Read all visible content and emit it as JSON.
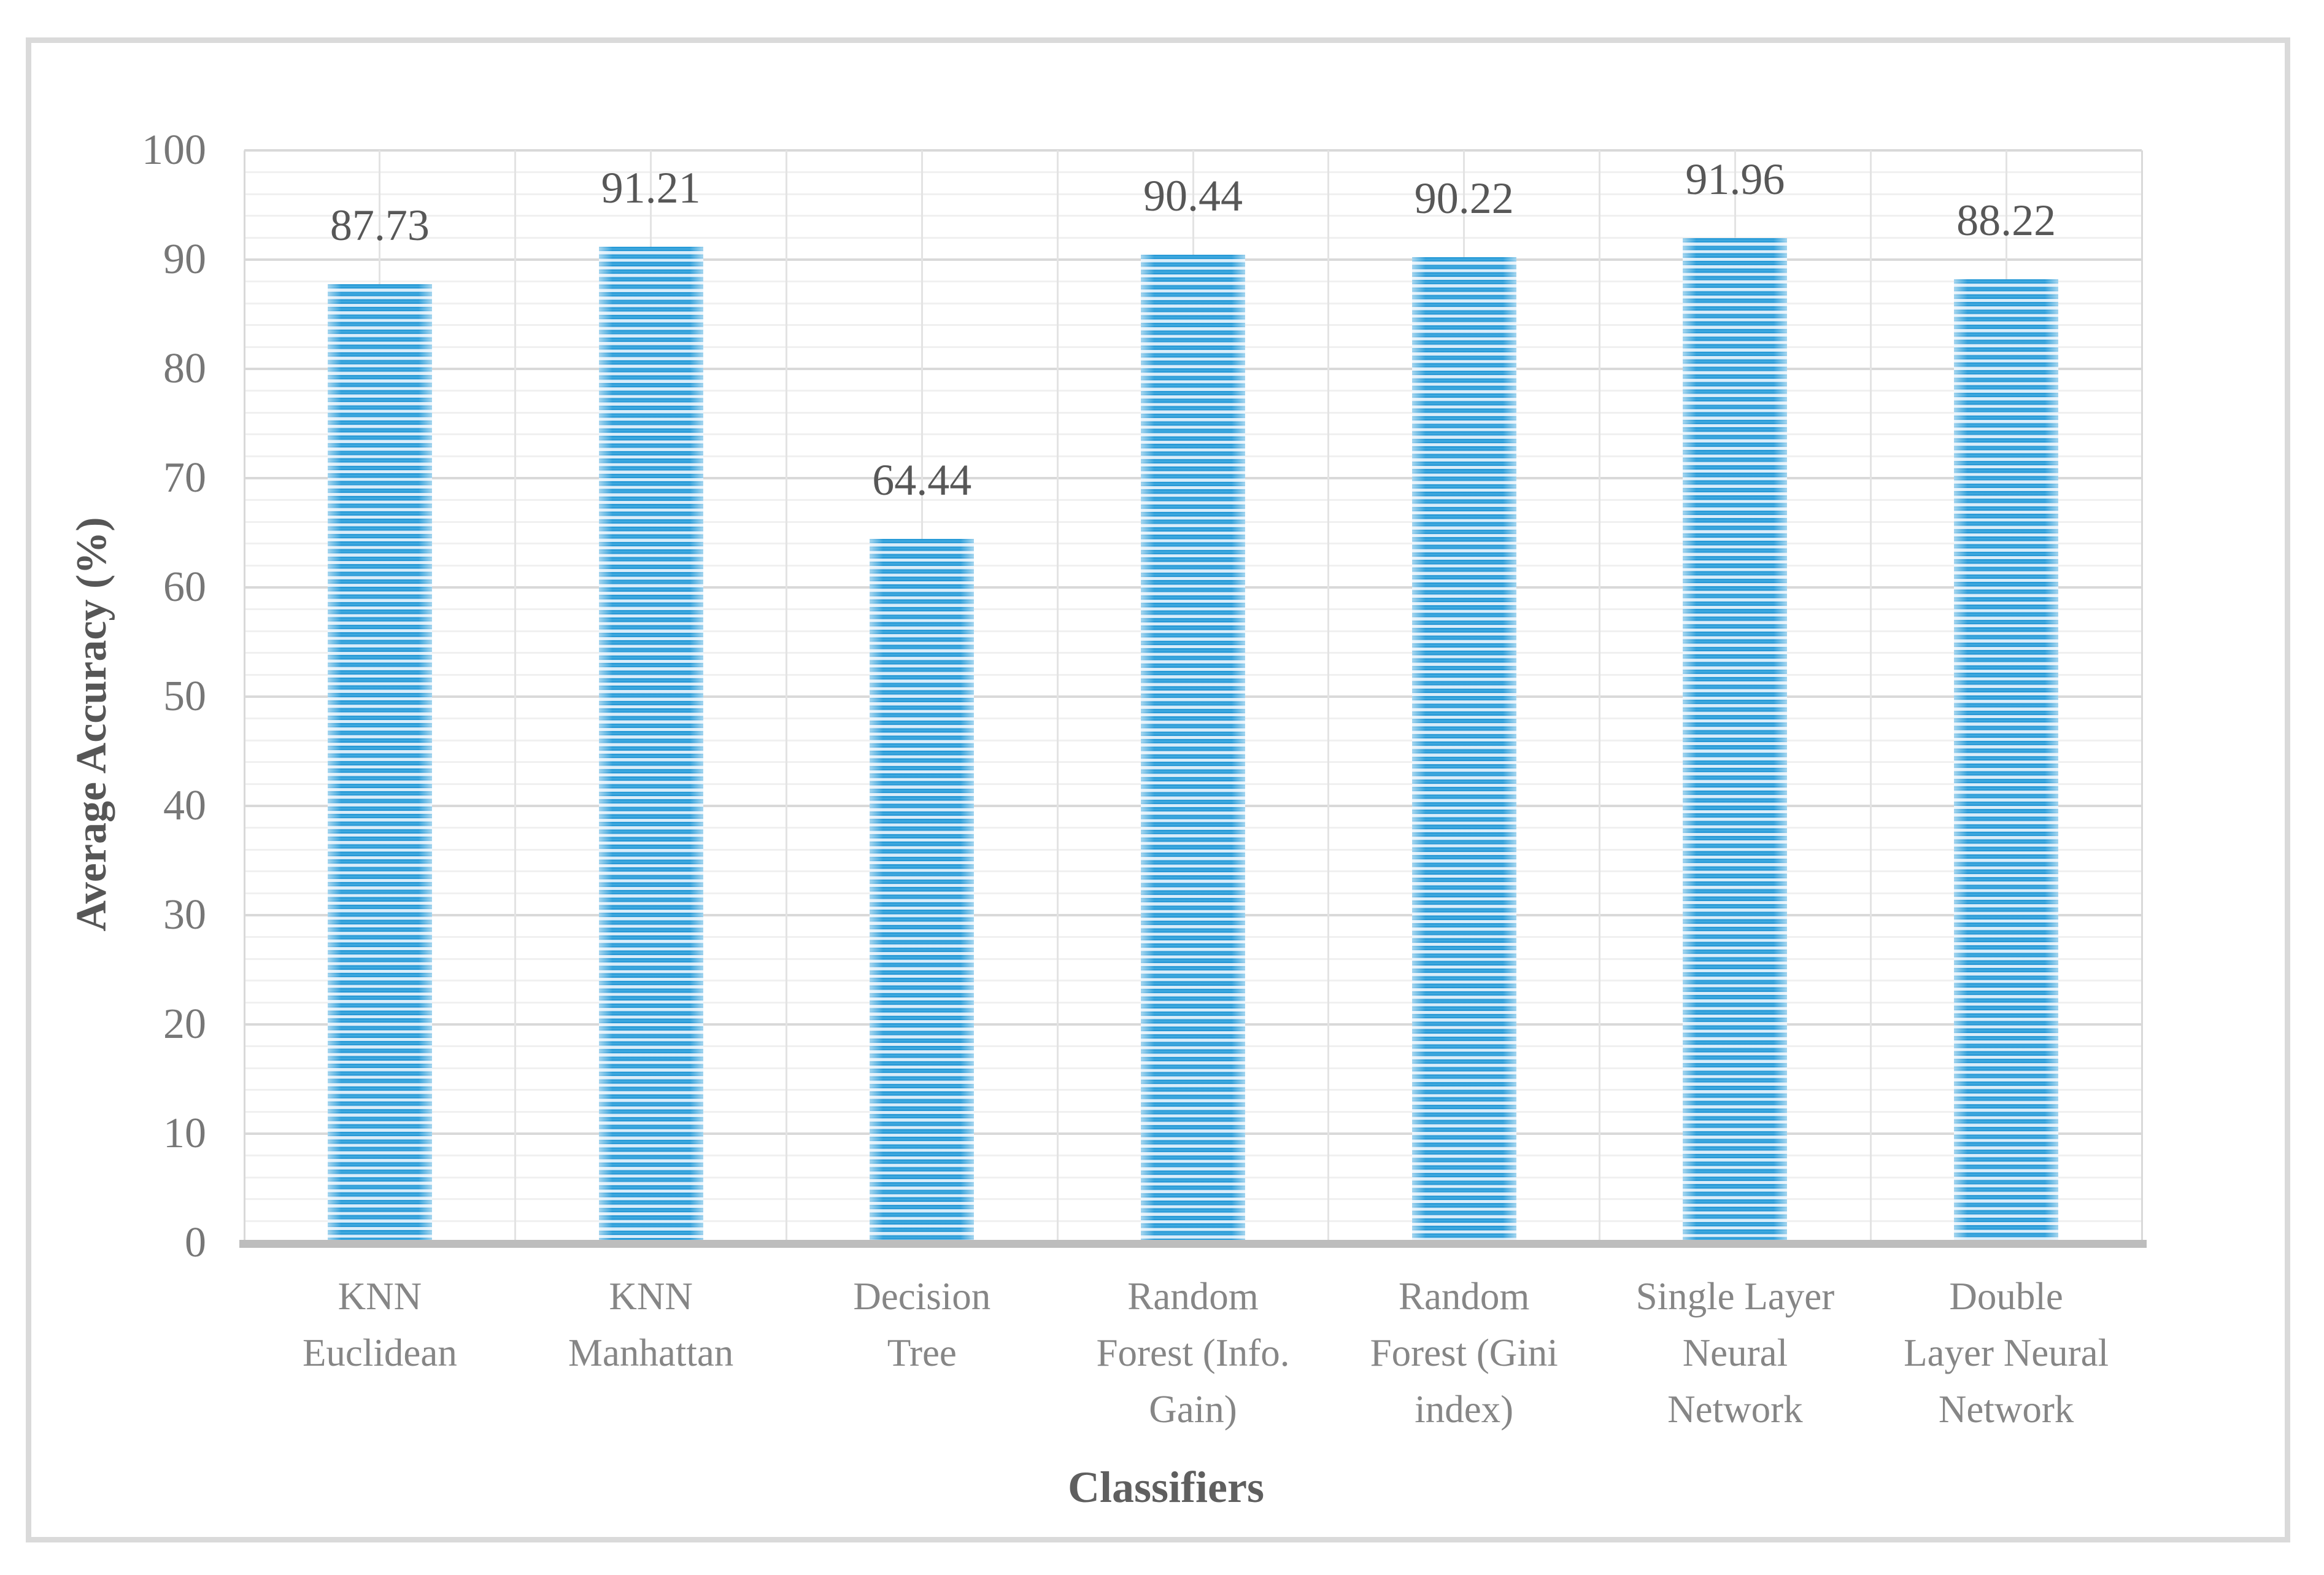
{
  "figure": {
    "background_color": "#ffffff",
    "border_color": "#dadada"
  },
  "chart_data": {
    "type": "bar",
    "title": "",
    "xlabel": "Classifiers",
    "ylabel": "Average Accuracy (%)",
    "categories": [
      "KNN Euclidean",
      "KNN Manhattan",
      "Decision Tree",
      "Random Forest (Info. Gain)",
      "Random Forest (Gini index)",
      "Single Layer Neural Network",
      "Double Layer Neural Network"
    ],
    "category_lines": [
      [
        "KNN",
        "Euclidean"
      ],
      [
        "KNN",
        "Manhattan"
      ],
      [
        "Decision",
        "Tree"
      ],
      [
        "Random",
        "Forest (Info.",
        "Gain)"
      ],
      [
        "Random",
        "Forest (Gini",
        "index)"
      ],
      [
        "Single Layer",
        "Neural",
        "Network"
      ],
      [
        "Double",
        "Layer Neural",
        "Network"
      ]
    ],
    "values": [
      87.73,
      91.21,
      64.44,
      90.44,
      90.22,
      91.96,
      88.22
    ],
    "data_labels": [
      "87.73",
      "91.21",
      "64.44",
      "90.44",
      "90.22",
      "91.96",
      "88.22"
    ],
    "ylim": [
      0,
      100
    ],
    "y_major_step": 10,
    "y_minor_step": 2,
    "y_ticks": [
      "0",
      "10",
      "20",
      "30",
      "40",
      "50",
      "60",
      "70",
      "80",
      "90",
      "100"
    ],
    "grid": true,
    "legend": "none",
    "colors": {
      "bar_stripe_dark": "#2095d5",
      "bar_stripe_light": "#d6eafa",
      "gridline_major": "#d9d9d9",
      "gridline_minor": "#f0f0f0",
      "gridline_vertical": "#e3e3e3",
      "axis_line": "#bdbdbd",
      "tick_label": "#777777",
      "data_label": "#575757",
      "axis_title": "#565656",
      "category_label": "#868686"
    }
  }
}
